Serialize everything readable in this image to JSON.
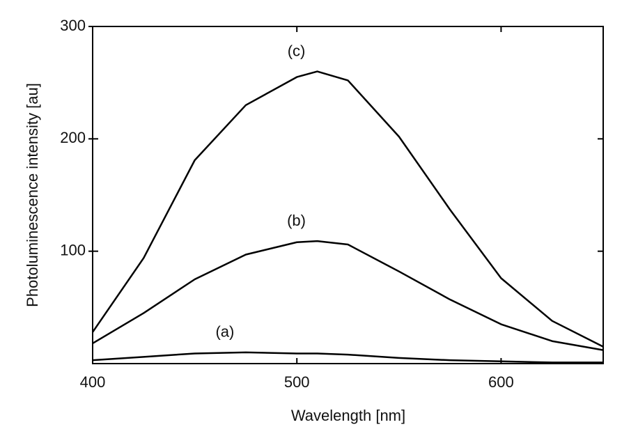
{
  "chart_data": {
    "type": "line",
    "x_label": "Wavelength [nm]",
    "y_label": "Photoluminescence intensity [au]",
    "x": [
      400,
      425,
      450,
      475,
      500,
      510,
      525,
      550,
      575,
      600,
      625,
      650
    ],
    "series": [
      {
        "name": "(a)",
        "color": "#000000",
        "values": [
          3,
          6,
          9,
          10,
          9,
          9,
          8,
          5,
          3,
          2,
          1,
          1
        ]
      },
      {
        "name": "(b)",
        "color": "#000000",
        "values": [
          18,
          45,
          75,
          97,
          108,
          109,
          106,
          82,
          57,
          35,
          20,
          12
        ]
      },
      {
        "name": "(c)",
        "color": "#000000",
        "values": [
          28,
          94,
          181,
          230,
          255,
          260,
          252,
          202,
          137,
          76,
          38,
          15
        ]
      }
    ],
    "xlim": [
      400,
      650
    ],
    "xticks": [
      400,
      500,
      600
    ],
    "ylim": [
      0,
      300
    ],
    "yticks": [
      100,
      200,
      300
    ]
  }
}
